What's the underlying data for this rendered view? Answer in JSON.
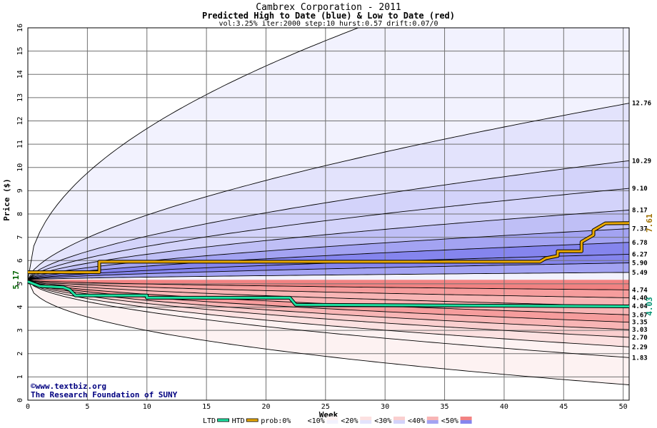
{
  "chart_data": {
    "type": "area",
    "title": "Cambrex Corporation - 2011",
    "subtitle": "Predicted High to Date (blue) &  Low to Date (red)",
    "params": "vol:3.25% iter:2000 step:10 hurst:0.57 drift:0.07/0",
    "xlabel": "Week",
    "ylabel": "Price ($)",
    "xlim": [
      0,
      50.5
    ],
    "ylim": [
      0,
      16
    ],
    "x_ticks": [
      0,
      5,
      10,
      15,
      20,
      25,
      30,
      35,
      40,
      45,
      50
    ],
    "y_ticks": [
      0,
      1,
      2,
      3,
      4,
      5,
      6,
      7,
      8,
      9,
      10,
      11,
      12,
      13,
      14,
      15,
      16
    ],
    "grid": true,
    "start_price": 5.17,
    "start_label": "5.17",
    "high_end_labels": [
      "12.76",
      "10.29",
      "9.10",
      "8.17",
      "7.37",
      "6.78",
      "6.27",
      "5.90",
      "5.49"
    ],
    "low_end_labels": [
      "4.74",
      "4.40",
      "4.04",
      "3.67",
      "3.35",
      "3.03",
      "2.70",
      "2.29",
      "1.83"
    ],
    "htd_series": {
      "name": "HTD",
      "current_label": "7.61",
      "points": [
        [
          0,
          5.5
        ],
        [
          6,
          5.5
        ],
        [
          6,
          5.95
        ],
        [
          43,
          5.95
        ],
        [
          43.5,
          6.1
        ],
        [
          44.5,
          6.2
        ],
        [
          44.5,
          6.4
        ],
        [
          46.5,
          6.4
        ],
        [
          46.5,
          6.8
        ],
        [
          47.5,
          7.1
        ],
        [
          47.5,
          7.3
        ],
        [
          48.5,
          7.6
        ],
        [
          50.5,
          7.61
        ]
      ]
    },
    "ltd_series": {
      "name": "LTD",
      "current_label": "4.03",
      "points": [
        [
          0,
          5.1
        ],
        [
          1,
          4.9
        ],
        [
          3,
          4.85
        ],
        [
          3.5,
          4.75
        ],
        [
          4,
          4.5
        ],
        [
          10,
          4.5
        ],
        [
          10,
          4.4
        ],
        [
          22,
          4.4
        ],
        [
          22.5,
          4.1
        ],
        [
          50.5,
          4.03
        ]
      ]
    },
    "legend": {
      "items": [
        "LTD",
        "HTD",
        "prob:0%",
        "<10%",
        "<20%",
        "<30%",
        "<40%",
        "<50%"
      ],
      "placement": "bottom"
    },
    "colors": {
      "htd": "#e8a800",
      "ltd": "#1ee0a0",
      "high_bands": [
        "#f2f2fe",
        "#e3e3fc",
        "#d3d3fa",
        "#bfbff6",
        "#a3a3f2",
        "#8585ee"
      ],
      "low_bands": [
        "#fdf2f2",
        "#fce1e1",
        "#facfcf",
        "#f8b5b5",
        "#f69d9d",
        "#f28282"
      ]
    }
  },
  "watermark": {
    "copyright": "©www.textbiz.org",
    "org": "The Research Foundation of SUNY"
  }
}
